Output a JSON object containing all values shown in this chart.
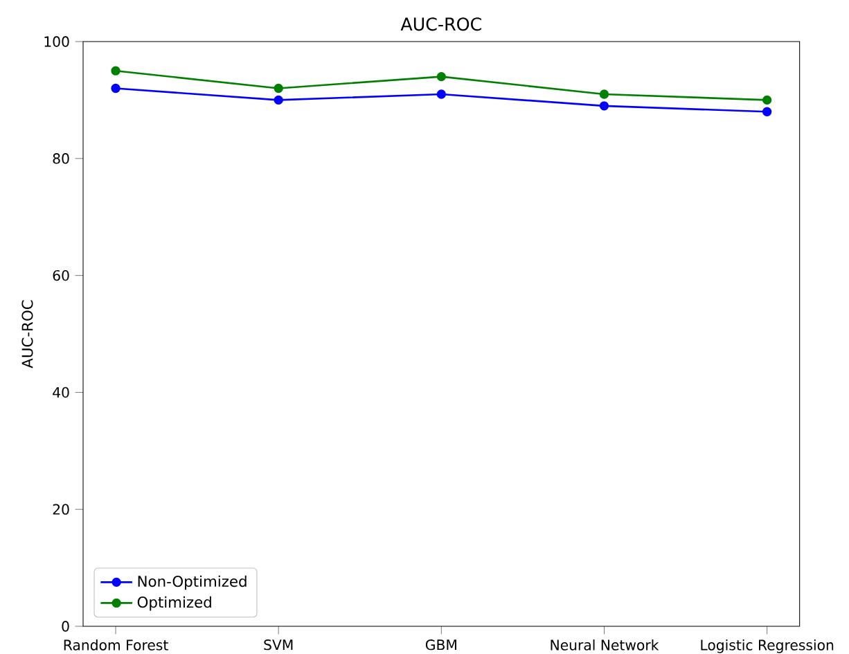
{
  "chart_data": {
    "type": "line",
    "title": "AUC-ROC",
    "ylabel": "AUC-ROC",
    "categories": [
      "Random Forest",
      "SVM",
      "GBM",
      "Neural Network",
      "Logistic Regression"
    ],
    "series": [
      {
        "name": "Non-Optimized",
        "color": "#0000ff",
        "values": [
          92,
          90,
          91,
          89,
          88
        ]
      },
      {
        "name": "Optimized",
        "color": "#008000",
        "values": [
          95,
          92,
          94,
          91,
          90
        ]
      }
    ],
    "ylim": [
      0,
      100
    ],
    "yticks": [
      0,
      20,
      40,
      60,
      80,
      100
    ],
    "legend": "bottom left",
    "marker": "circle",
    "line_style": "solid",
    "grid": false
  }
}
